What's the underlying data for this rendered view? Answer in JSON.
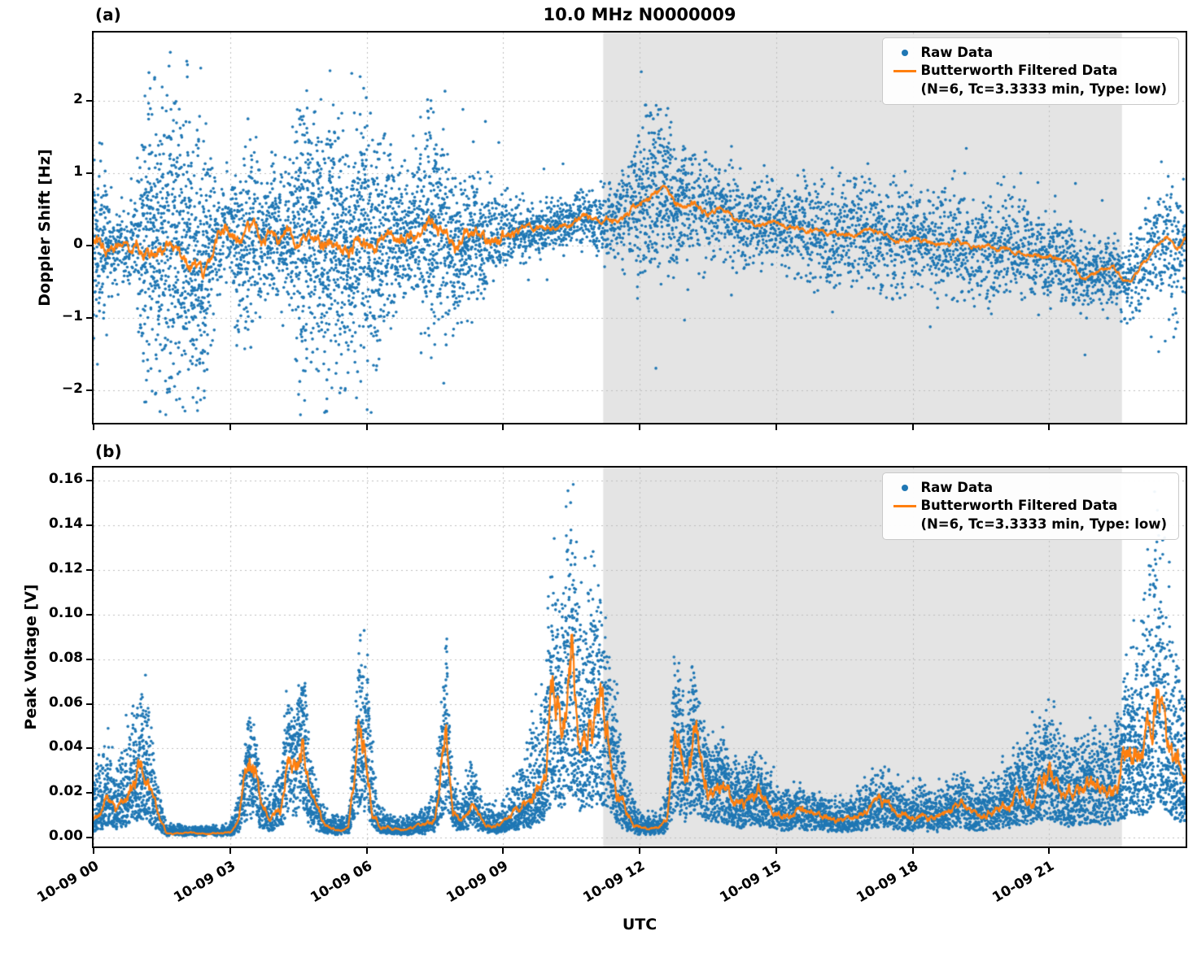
{
  "title": "10.0 MHz N0000009",
  "xlabel": "UTC",
  "colors": {
    "raw": "#1f77b4",
    "filtered": "#ff7f0e",
    "shade": "#e4e4e4",
    "grid": "#bdbdbd"
  },
  "chart_data": [
    {
      "id": "a",
      "type": "scatter",
      "panel_label": "(a)",
      "ylabel": "Doppler Shift [Hz]",
      "ylim": [
        -2.45,
        2.95
      ],
      "yticks": [
        -2,
        -1,
        0,
        1,
        2
      ],
      "ytick_labels": [
        "−2",
        "−1",
        "0",
        "1",
        "2"
      ],
      "xlim": [
        0,
        24
      ],
      "xticks": [
        0,
        3,
        6,
        9,
        12,
        15,
        18,
        21
      ],
      "xtick_labels": [],
      "shaded_region": [
        11.2,
        22.6
      ],
      "legend": {
        "raw_label": "Raw Data",
        "filtered_label": "Butterworth Filtered Data",
        "filtered_params": "(N=6, Tc=3.3333 min, Type: low)"
      },
      "filtered_line": [
        [
          0,
          0.1
        ],
        [
          0.3,
          0.05
        ],
        [
          0.6,
          0.02
        ],
        [
          0.9,
          0.05
        ],
        [
          1.2,
          -0.05
        ],
        [
          1.5,
          -0.1
        ],
        [
          1.8,
          -0.05
        ],
        [
          2.1,
          -0.2
        ],
        [
          2.4,
          -0.4
        ],
        [
          2.6,
          -0.1
        ],
        [
          2.9,
          0.25
        ],
        [
          3.2,
          0.05
        ],
        [
          3.5,
          0.15
        ],
        [
          3.8,
          0.2
        ],
        [
          4.1,
          0.15
        ],
        [
          4.4,
          0.1
        ],
        [
          4.7,
          0.05
        ],
        [
          5.0,
          0.0
        ],
        [
          5.3,
          0.15
        ],
        [
          5.6,
          -0.15
        ],
        [
          5.9,
          0.1
        ],
        [
          6.2,
          -0.1
        ],
        [
          6.5,
          0.2
        ],
        [
          6.8,
          0.1
        ],
        [
          7.1,
          0.2
        ],
        [
          7.4,
          0.35
        ],
        [
          7.7,
          0.1
        ],
        [
          8.0,
          -0.15
        ],
        [
          8.3,
          0.2
        ],
        [
          8.6,
          0.1
        ],
        [
          9.0,
          0.15
        ],
        [
          9.5,
          0.2
        ],
        [
          10.0,
          0.25
        ],
        [
          10.5,
          0.3
        ],
        [
          10.8,
          0.4
        ],
        [
          11.1,
          0.3
        ],
        [
          11.4,
          0.35
        ],
        [
          11.7,
          0.45
        ],
        [
          12.0,
          0.55
        ],
        [
          12.3,
          0.7
        ],
        [
          12.6,
          0.85
        ],
        [
          12.8,
          0.55
        ],
        [
          13.0,
          0.55
        ],
        [
          13.2,
          0.65
        ],
        [
          13.5,
          0.45
        ],
        [
          13.8,
          0.5
        ],
        [
          14.1,
          0.35
        ],
        [
          14.5,
          0.3
        ],
        [
          15.0,
          0.3
        ],
        [
          15.5,
          0.2
        ],
        [
          16.0,
          0.2
        ],
        [
          16.5,
          0.15
        ],
        [
          17.0,
          0.2
        ],
        [
          17.5,
          0.1
        ],
        [
          18.0,
          0.1
        ],
        [
          18.5,
          0.05
        ],
        [
          19.0,
          0.05
        ],
        [
          19.5,
          0.0
        ],
        [
          20.0,
          -0.05
        ],
        [
          20.5,
          -0.1
        ],
        [
          21.0,
          -0.15
        ],
        [
          21.4,
          -0.2
        ],
        [
          21.8,
          -0.5
        ],
        [
          22.1,
          -0.35
        ],
        [
          22.4,
          -0.3
        ],
        [
          22.7,
          -0.55
        ],
        [
          23.0,
          -0.3
        ],
        [
          23.3,
          -0.05
        ],
        [
          23.6,
          0.1
        ],
        [
          23.8,
          -0.05
        ],
        [
          24,
          0.1
        ]
      ],
      "raw_scatter_spread": [
        [
          0,
          0.55
        ],
        [
          0.2,
          0.7
        ],
        [
          0.5,
          0.3
        ],
        [
          0.9,
          0.35
        ],
        [
          1.1,
          1.0
        ],
        [
          1.4,
          1.25
        ],
        [
          1.8,
          1.25
        ],
        [
          2.2,
          1.2
        ],
        [
          2.5,
          1.1
        ],
        [
          2.7,
          0.5
        ],
        [
          3.0,
          0.45
        ],
        [
          3.2,
          0.8
        ],
        [
          3.5,
          0.75
        ],
        [
          3.7,
          0.5
        ],
        [
          3.9,
          0.6
        ],
        [
          4.1,
          0.6
        ],
        [
          4.3,
          0.55
        ],
        [
          4.5,
          1.05
        ],
        [
          4.8,
          1.15
        ],
        [
          5.1,
          1.1
        ],
        [
          5.4,
          1.1
        ],
        [
          5.7,
          0.95
        ],
        [
          6.0,
          1.05
        ],
        [
          6.3,
          0.9
        ],
        [
          6.6,
          0.6
        ],
        [
          6.9,
          0.55
        ],
        [
          7.1,
          0.75
        ],
        [
          7.4,
          0.95
        ],
        [
          7.7,
          0.85
        ],
        [
          8.0,
          0.7
        ],
        [
          8.3,
          0.55
        ],
        [
          8.6,
          0.5
        ],
        [
          9.0,
          0.3
        ],
        [
          9.4,
          0.25
        ],
        [
          9.8,
          0.22
        ],
        [
          10.2,
          0.2
        ],
        [
          10.6,
          0.22
        ],
        [
          11.0,
          0.27
        ],
        [
          11.4,
          0.32
        ],
        [
          11.8,
          0.45
        ],
        [
          12.1,
          0.6
        ],
        [
          12.4,
          0.75
        ],
        [
          12.7,
          0.65
        ],
        [
          13.0,
          0.5
        ],
        [
          13.4,
          0.45
        ],
        [
          13.8,
          0.4
        ],
        [
          14.2,
          0.38
        ],
        [
          14.6,
          0.35
        ],
        [
          15.0,
          0.35
        ],
        [
          15.5,
          0.4
        ],
        [
          16.0,
          0.45
        ],
        [
          16.5,
          0.45
        ],
        [
          17.0,
          0.5
        ],
        [
          17.5,
          0.5
        ],
        [
          18.0,
          0.45
        ],
        [
          18.5,
          0.45
        ],
        [
          19.0,
          0.5
        ],
        [
          19.5,
          0.45
        ],
        [
          20.0,
          0.42
        ],
        [
          20.5,
          0.4
        ],
        [
          21.0,
          0.36
        ],
        [
          21.5,
          0.34
        ],
        [
          22.0,
          0.3
        ],
        [
          22.5,
          0.3
        ],
        [
          23.0,
          0.35
        ],
        [
          23.3,
          0.45
        ],
        [
          23.6,
          0.5
        ],
        [
          24,
          0.5
        ]
      ]
    },
    {
      "id": "b",
      "type": "scatter",
      "panel_label": "(b)",
      "ylabel": "Peak Voltage [V]",
      "ylim": [
        -0.004,
        0.166
      ],
      "yticks": [
        0.0,
        0.02,
        0.04,
        0.06,
        0.08,
        0.1,
        0.12,
        0.14,
        0.16
      ],
      "ytick_labels": [
        "0.00",
        "0.02",
        "0.04",
        "0.06",
        "0.08",
        "0.10",
        "0.12",
        "0.14",
        "0.16"
      ],
      "xlim": [
        0,
        24
      ],
      "xticks": [
        0,
        3,
        6,
        9,
        12,
        15,
        18,
        21
      ],
      "xtick_labels": [
        "10-09 00",
        "10-09 03",
        "10-09 06",
        "10-09 09",
        "10-09 12",
        "10-09 15",
        "10-09 18",
        "10-09 21"
      ],
      "shaded_region": [
        11.2,
        22.6
      ],
      "legend": {
        "raw_label": "Raw Data",
        "filtered_label": "Butterworth Filtered Data",
        "filtered_params": "(N=6, Tc=3.3333 min, Type: low)"
      },
      "filtered_line": [
        [
          0,
          0.008
        ],
        [
          0.3,
          0.018
        ],
        [
          0.5,
          0.012
        ],
        [
          0.8,
          0.02
        ],
        [
          1.0,
          0.03
        ],
        [
          1.2,
          0.025
        ],
        [
          1.4,
          0.01
        ],
        [
          1.6,
          0.002
        ],
        [
          2.0,
          0.002
        ],
        [
          2.5,
          0.002
        ],
        [
          3.0,
          0.002
        ],
        [
          3.2,
          0.008
        ],
        [
          3.4,
          0.035
        ],
        [
          3.55,
          0.03
        ],
        [
          3.7,
          0.012
        ],
        [
          3.9,
          0.008
        ],
        [
          4.1,
          0.012
        ],
        [
          4.25,
          0.04
        ],
        [
          4.45,
          0.035
        ],
        [
          4.6,
          0.05
        ],
        [
          4.75,
          0.02
        ],
        [
          4.9,
          0.012
        ],
        [
          5.1,
          0.005
        ],
        [
          5.3,
          0.004
        ],
        [
          5.6,
          0.004
        ],
        [
          5.85,
          0.048
        ],
        [
          6.0,
          0.04
        ],
        [
          6.15,
          0.012
        ],
        [
          6.3,
          0.005
        ],
        [
          6.5,
          0.004
        ],
        [
          6.8,
          0.003
        ],
        [
          7.0,
          0.004
        ],
        [
          7.2,
          0.005
        ],
        [
          7.5,
          0.008
        ],
        [
          7.75,
          0.05
        ],
        [
          7.9,
          0.012
        ],
        [
          8.1,
          0.008
        ],
        [
          8.3,
          0.015
        ],
        [
          8.6,
          0.006
        ],
        [
          8.9,
          0.005
        ],
        [
          9.1,
          0.008
        ],
        [
          9.3,
          0.012
        ],
        [
          9.5,
          0.015
        ],
        [
          9.7,
          0.02
        ],
        [
          9.9,
          0.03
        ],
        [
          10.1,
          0.06
        ],
        [
          10.3,
          0.045
        ],
        [
          10.5,
          0.078
        ],
        [
          10.7,
          0.04
        ],
        [
          10.9,
          0.05
        ],
        [
          11.1,
          0.06
        ],
        [
          11.3,
          0.045
        ],
        [
          11.5,
          0.025
        ],
        [
          11.7,
          0.012
        ],
        [
          11.9,
          0.006
        ],
        [
          12.1,
          0.004
        ],
        [
          12.4,
          0.004
        ],
        [
          12.6,
          0.008
        ],
        [
          12.8,
          0.05
        ],
        [
          13.0,
          0.025
        ],
        [
          13.2,
          0.045
        ],
        [
          13.4,
          0.03
        ],
        [
          13.6,
          0.02
        ],
        [
          13.8,
          0.025
        ],
        [
          14.0,
          0.018
        ],
        [
          14.3,
          0.015
        ],
        [
          14.6,
          0.02
        ],
        [
          14.9,
          0.012
        ],
        [
          15.2,
          0.01
        ],
        [
          15.5,
          0.012
        ],
        [
          15.8,
          0.01
        ],
        [
          16.1,
          0.009
        ],
        [
          16.4,
          0.007
        ],
        [
          16.7,
          0.009
        ],
        [
          17.0,
          0.012
        ],
        [
          17.3,
          0.015
        ],
        [
          17.6,
          0.012
        ],
        [
          17.9,
          0.009
        ],
        [
          18.2,
          0.012
        ],
        [
          18.5,
          0.009
        ],
        [
          18.8,
          0.012
        ],
        [
          19.1,
          0.015
        ],
        [
          19.4,
          0.009
        ],
        [
          19.7,
          0.012
        ],
        [
          20.0,
          0.015
        ],
        [
          20.3,
          0.02
        ],
        [
          20.6,
          0.022
        ],
        [
          20.9,
          0.03
        ],
        [
          21.1,
          0.025
        ],
        [
          21.4,
          0.018
        ],
        [
          21.7,
          0.02
        ],
        [
          22.0,
          0.025
        ],
        [
          22.2,
          0.02
        ],
        [
          22.5,
          0.025
        ],
        [
          22.8,
          0.04
        ],
        [
          23.0,
          0.035
        ],
        [
          23.2,
          0.045
        ],
        [
          23.4,
          0.065
        ],
        [
          23.6,
          0.04
        ],
        [
          23.8,
          0.03
        ],
        [
          24.0,
          0.025
        ]
      ],
      "raw_scatter_envelope": [
        [
          0,
          0.03
        ],
        [
          0.3,
          0.042
        ],
        [
          0.5,
          0.03
        ],
        [
          0.8,
          0.055
        ],
        [
          1.0,
          0.065
        ],
        [
          1.2,
          0.06
        ],
        [
          1.4,
          0.025
        ],
        [
          1.6,
          0.006
        ],
        [
          2.0,
          0.005
        ],
        [
          2.5,
          0.005
        ],
        [
          3.0,
          0.006
        ],
        [
          3.2,
          0.02
        ],
        [
          3.4,
          0.052
        ],
        [
          3.55,
          0.048
        ],
        [
          3.7,
          0.025
        ],
        [
          3.9,
          0.02
        ],
        [
          4.1,
          0.03
        ],
        [
          4.25,
          0.06
        ],
        [
          4.45,
          0.055
        ],
        [
          4.6,
          0.079
        ],
        [
          4.75,
          0.04
        ],
        [
          4.9,
          0.025
        ],
        [
          5.1,
          0.012
        ],
        [
          5.3,
          0.01
        ],
        [
          5.6,
          0.01
        ],
        [
          5.85,
          0.085
        ],
        [
          6.0,
          0.08
        ],
        [
          6.15,
          0.03
        ],
        [
          6.3,
          0.012
        ],
        [
          6.5,
          0.01
        ],
        [
          6.8,
          0.008
        ],
        [
          7.0,
          0.01
        ],
        [
          7.2,
          0.012
        ],
        [
          7.5,
          0.02
        ],
        [
          7.75,
          0.084
        ],
        [
          7.9,
          0.03
        ],
        [
          8.1,
          0.02
        ],
        [
          8.3,
          0.032
        ],
        [
          8.6,
          0.015
        ],
        [
          8.9,
          0.012
        ],
        [
          9.1,
          0.02
        ],
        [
          9.3,
          0.03
        ],
        [
          9.5,
          0.04
        ],
        [
          9.7,
          0.05
        ],
        [
          9.9,
          0.07
        ],
        [
          10.1,
          0.12
        ],
        [
          10.3,
          0.1
        ],
        [
          10.5,
          0.158
        ],
        [
          10.7,
          0.1
        ],
        [
          10.9,
          0.105
        ],
        [
          11.1,
          0.119
        ],
        [
          11.3,
          0.08
        ],
        [
          11.5,
          0.06
        ],
        [
          11.7,
          0.03
        ],
        [
          11.9,
          0.015
        ],
        [
          12.1,
          0.01
        ],
        [
          12.4,
          0.01
        ],
        [
          12.6,
          0.02
        ],
        [
          12.8,
          0.084
        ],
        [
          13.0,
          0.055
        ],
        [
          13.2,
          0.075
        ],
        [
          13.4,
          0.05
        ],
        [
          13.6,
          0.04
        ],
        [
          13.8,
          0.045
        ],
        [
          14.0,
          0.035
        ],
        [
          14.3,
          0.03
        ],
        [
          14.6,
          0.04
        ],
        [
          14.9,
          0.025
        ],
        [
          15.2,
          0.02
        ],
        [
          15.5,
          0.025
        ],
        [
          15.8,
          0.02
        ],
        [
          16.1,
          0.02
        ],
        [
          16.4,
          0.015
        ],
        [
          16.7,
          0.02
        ],
        [
          17.0,
          0.025
        ],
        [
          17.3,
          0.03
        ],
        [
          17.6,
          0.025
        ],
        [
          17.9,
          0.02
        ],
        [
          18.2,
          0.025
        ],
        [
          18.5,
          0.02
        ],
        [
          18.8,
          0.025
        ],
        [
          19.1,
          0.03
        ],
        [
          19.4,
          0.02
        ],
        [
          19.7,
          0.025
        ],
        [
          20.0,
          0.03
        ],
        [
          20.3,
          0.04
        ],
        [
          20.6,
          0.045
        ],
        [
          20.9,
          0.06
        ],
        [
          21.1,
          0.055
        ],
        [
          21.4,
          0.04
        ],
        [
          21.7,
          0.045
        ],
        [
          22.0,
          0.05
        ],
        [
          22.2,
          0.045
        ],
        [
          22.5,
          0.055
        ],
        [
          22.8,
          0.09
        ],
        [
          23.0,
          0.08
        ],
        [
          23.2,
          0.13
        ],
        [
          23.4,
          0.147
        ],
        [
          23.6,
          0.1
        ],
        [
          23.8,
          0.075
        ],
        [
          24.0,
          0.06
        ]
      ]
    }
  ]
}
